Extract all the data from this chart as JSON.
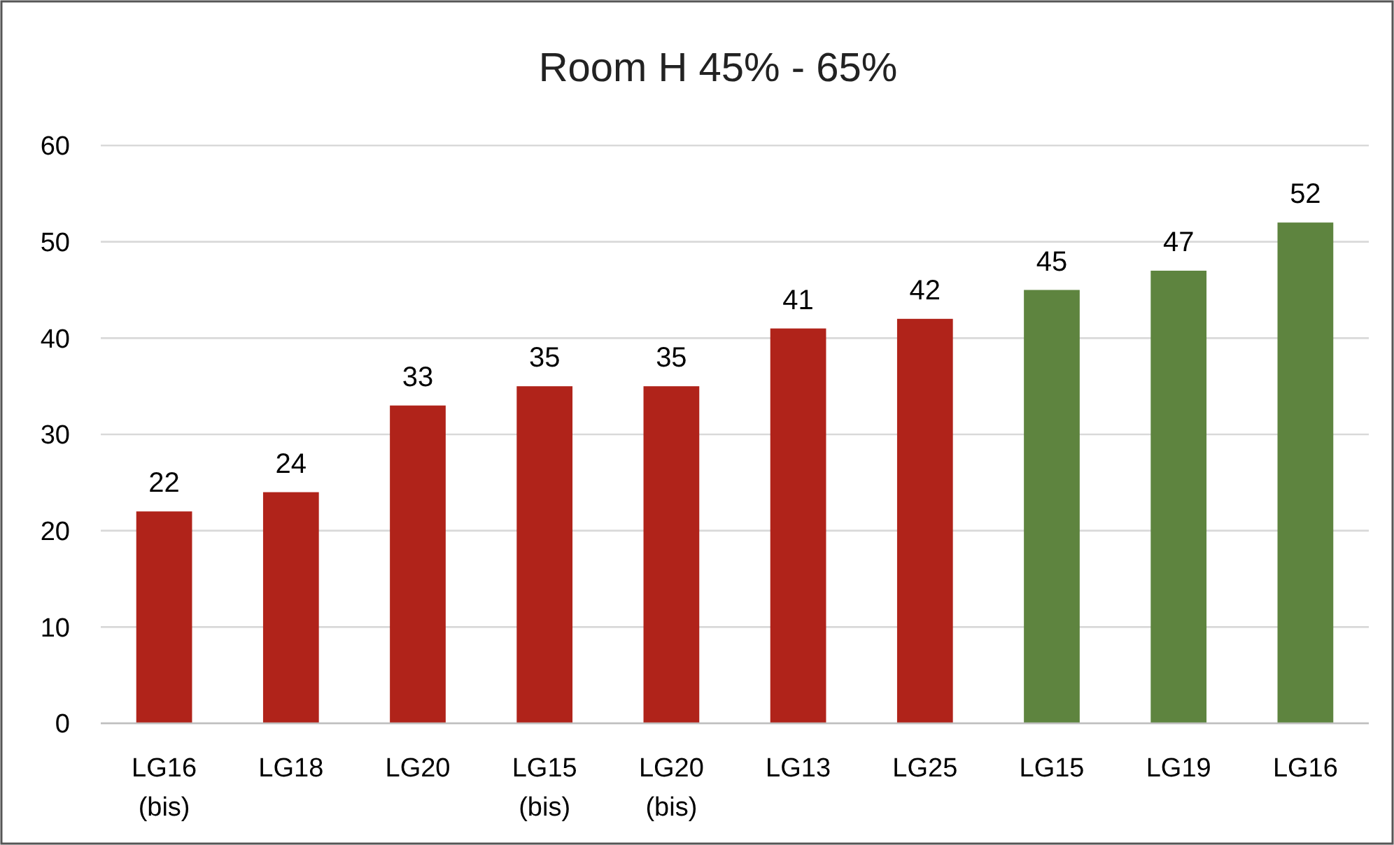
{
  "chart_data": {
    "type": "bar",
    "title": "Room H 45% - 65%",
    "categories": [
      "LG16 (bis)",
      "LG18",
      "LG20",
      "LG15 (bis)",
      "LG20 (bis)",
      "LG13",
      "LG25",
      "LG15",
      "LG19",
      "LG16"
    ],
    "values": [
      22,
      24,
      33,
      35,
      35,
      41,
      42,
      45,
      47,
      52
    ],
    "colors": [
      "#b0231a",
      "#b0231a",
      "#b0231a",
      "#b0231a",
      "#b0231a",
      "#b0231a",
      "#b0231a",
      "#5e843f",
      "#5e843f",
      "#5e843f"
    ],
    "ylim": [
      0,
      60
    ],
    "yticks": [
      0,
      10,
      20,
      30,
      40,
      50,
      60
    ],
    "grid": "y",
    "data_labels": true
  }
}
